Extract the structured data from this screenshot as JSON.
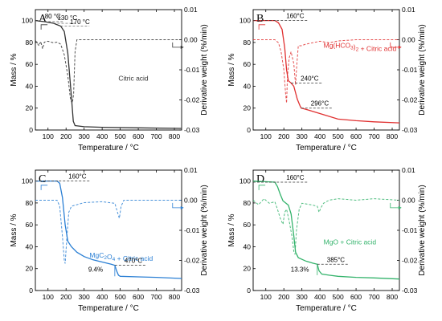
{
  "chart_data": [
    {
      "type": "line",
      "panel": "A",
      "label": "Citric acid",
      "xlabel": "Temperature / °C",
      "ylabel_left": "Mass / %",
      "ylabel_right": "Derivative weight (%/min)",
      "xlim": [
        30,
        840
      ],
      "ylim_left": [
        0,
        110
      ],
      "ylim_right": [
        -0.03,
        0.01
      ],
      "x_ticks": [
        100,
        200,
        300,
        400,
        500,
        600,
        700,
        800
      ],
      "y_ticks_left": [
        0,
        20,
        40,
        60,
        80,
        100
      ],
      "y_ticks_right": [
        -0.03,
        -0.02,
        -0.01,
        0.0,
        0.01
      ],
      "x_tick_labels": [
        "100",
        "200",
        "300",
        "400",
        "500",
        "600",
        "700",
        "800"
      ],
      "y_tick_labels_left": [
        "0",
        "20",
        "40",
        "60",
        "80",
        "100"
      ],
      "y_tick_labels_right": [
        "-0.03",
        "-0.02",
        "-0.01",
        "0.00",
        "0.01"
      ],
      "color": "#333333",
      "mass": [
        [
          30,
          100
        ],
        [
          80,
          99
        ],
        [
          130,
          97.5
        ],
        [
          170,
          95
        ],
        [
          190,
          90
        ],
        [
          210,
          70
        ],
        [
          230,
          30
        ],
        [
          240,
          8
        ],
        [
          250,
          4
        ],
        [
          300,
          3
        ],
        [
          400,
          2.5
        ],
        [
          600,
          2
        ],
        [
          840,
          1.5
        ]
      ],
      "deriv": [
        [
          30,
          -0.0002
        ],
        [
          50,
          -0.002
        ],
        [
          60,
          -0.0006
        ],
        [
          70,
          -0.003
        ],
        [
          80,
          -0.0008
        ],
        [
          100,
          -0.0005
        ],
        [
          130,
          -0.001
        ],
        [
          150,
          -0.0008
        ],
        [
          170,
          -0.0015
        ],
        [
          190,
          -0.005
        ],
        [
          210,
          -0.012
        ],
        [
          225,
          -0.02
        ],
        [
          235,
          -0.021
        ],
        [
          242,
          -0.018
        ],
        [
          250,
          -0.004
        ],
        [
          260,
          0
        ],
        [
          300,
          0
        ],
        [
          400,
          0
        ],
        [
          600,
          0
        ],
        [
          840,
          0
        ]
      ],
      "annotations": [
        {
          "text": "80 °C",
          "x": 80,
          "y": 99
        },
        {
          "text": "130 °C",
          "x": 130,
          "y": 97.5
        },
        {
          "text": "170 °C",
          "x": 170,
          "y": 95
        }
      ]
    },
    {
      "type": "line",
      "panel": "B",
      "label": "Mg(HCO3)2 + Citric acid",
      "xlabel": "Temperature / °C",
      "ylabel_left": "Mass / %",
      "ylabel_right": "Derivative weight (%/min)",
      "xlim": [
        30,
        840
      ],
      "ylim_left": [
        0,
        110
      ],
      "ylim_right": [
        -0.03,
        0.01
      ],
      "x_ticks": [
        100,
        200,
        300,
        400,
        500,
        600,
        700,
        800
      ],
      "y_ticks_left": [
        0,
        20,
        40,
        60,
        80,
        100
      ],
      "y_ticks_right": [
        -0.03,
        -0.02,
        -0.01,
        0.0,
        0.01
      ],
      "x_tick_labels": [
        "100",
        "200",
        "300",
        "400",
        "500",
        "600",
        "700",
        "800"
      ],
      "y_tick_labels_left": [
        "0",
        "20",
        "40",
        "60",
        "80",
        "100"
      ],
      "y_tick_labels_right": [
        "-0.03",
        "-0.02",
        "-0.01",
        "0.00",
        "0.01"
      ],
      "color": "#e03030",
      "mass": [
        [
          30,
          100
        ],
        [
          150,
          100
        ],
        [
          170,
          98
        ],
        [
          190,
          92
        ],
        [
          205,
          75
        ],
        [
          215,
          55
        ],
        [
          225,
          45
        ],
        [
          240,
          43
        ],
        [
          255,
          40
        ],
        [
          275,
          28
        ],
        [
          290,
          22
        ],
        [
          296,
          20
        ],
        [
          320,
          19
        ],
        [
          400,
          15
        ],
        [
          500,
          10
        ],
        [
          600,
          8.5
        ],
        [
          700,
          7.5
        ],
        [
          840,
          6.5
        ]
      ],
      "deriv": [
        [
          30,
          0
        ],
        [
          150,
          0
        ],
        [
          170,
          -0.001
        ],
        [
          185,
          -0.004
        ],
        [
          200,
          -0.01
        ],
        [
          210,
          -0.018
        ],
        [
          215,
          -0.021
        ],
        [
          220,
          -0.012
        ],
        [
          230,
          -0.006
        ],
        [
          240,
          -0.004
        ],
        [
          255,
          -0.008
        ],
        [
          265,
          -0.015
        ],
        [
          272,
          -0.008
        ],
        [
          280,
          -0.002
        ],
        [
          296,
          -0.002
        ],
        [
          320,
          -0.0015
        ],
        [
          400,
          -0.0005
        ],
        [
          450,
          -0.001
        ],
        [
          500,
          -0.0004
        ],
        [
          600,
          0
        ],
        [
          840,
          0
        ]
      ],
      "annotations": [
        {
          "text": "160°C",
          "x": 160,
          "y": 100
        },
        {
          "text": "240°C",
          "x": 240,
          "y": 43
        },
        {
          "text": "296°C",
          "x": 296,
          "y": 20
        }
      ]
    },
    {
      "type": "line",
      "panel": "C",
      "label": "MgC2O4 + Citric acid",
      "xlabel": "Temperature / °C",
      "ylabel_left": "Mass / %",
      "ylabel_right": "Derivative weight (%/min)",
      "xlim": [
        30,
        840
      ],
      "ylim_left": [
        0,
        110
      ],
      "ylim_right": [
        -0.03,
        0.01
      ],
      "x_ticks": [
        100,
        200,
        300,
        400,
        500,
        600,
        700,
        800
      ],
      "y_ticks_left": [
        0,
        20,
        40,
        60,
        80,
        100
      ],
      "y_ticks_right": [
        -0.03,
        -0.02,
        -0.01,
        0.0,
        0.01
      ],
      "x_tick_labels": [
        "100",
        "200",
        "300",
        "400",
        "500",
        "600",
        "700",
        "800"
      ],
      "y_tick_labels_left": [
        "0",
        "20",
        "40",
        "60",
        "80",
        "100"
      ],
      "y_tick_labels_right": [
        "-0.03",
        "-0.02",
        "-0.01",
        "0.00",
        "0.01"
      ],
      "color": "#2a7fd4",
      "mass": [
        [
          30,
          100
        ],
        [
          150,
          100
        ],
        [
          165,
          98
        ],
        [
          180,
          85
        ],
        [
          195,
          60
        ],
        [
          210,
          45
        ],
        [
          230,
          40
        ],
        [
          260,
          35
        ],
        [
          300,
          31
        ],
        [
          350,
          28
        ],
        [
          400,
          26
        ],
        [
          450,
          24
        ],
        [
          470,
          23
        ],
        [
          480,
          18
        ],
        [
          490,
          14
        ],
        [
          500,
          13
        ],
        [
          600,
          12.5
        ],
        [
          700,
          12
        ],
        [
          840,
          11
        ]
      ],
      "deriv": [
        [
          30,
          0
        ],
        [
          150,
          0
        ],
        [
          165,
          -0.002
        ],
        [
          180,
          -0.012
        ],
        [
          190,
          -0.02
        ],
        [
          195,
          -0.021
        ],
        [
          205,
          -0.012
        ],
        [
          215,
          -0.004
        ],
        [
          230,
          -0.002
        ],
        [
          300,
          -0.0008
        ],
        [
          400,
          -0.0005
        ],
        [
          470,
          -0.001
        ],
        [
          485,
          -0.004
        ],
        [
          495,
          -0.006
        ],
        [
          505,
          -0.002
        ],
        [
          520,
          0
        ],
        [
          840,
          0
        ]
      ],
      "annotations": [
        {
          "text": "160°C",
          "x": 160,
          "y": 100
        },
        {
          "text": "470°C",
          "x": 470,
          "y": 23
        },
        {
          "text": "9.4%",
          "x": 470,
          "y": 18
        }
      ]
    },
    {
      "type": "line",
      "panel": "D",
      "label": "MgO + Citric acid",
      "xlabel": "Temperature / °C",
      "ylabel_left": "Mass / %",
      "ylabel_right": "Derivative weight (%/min)",
      "xlim": [
        30,
        840
      ],
      "ylim_left": [
        0,
        110
      ],
      "ylim_right": [
        -0.03,
        0.01
      ],
      "x_ticks": [
        100,
        200,
        300,
        400,
        500,
        600,
        700,
        800
      ],
      "y_ticks_left": [
        0,
        20,
        40,
        60,
        80,
        100
      ],
      "y_ticks_right": [
        -0.03,
        -0.02,
        -0.01,
        0.0,
        0.01
      ],
      "x_tick_labels": [
        "100",
        "200",
        "300",
        "400",
        "500",
        "600",
        "700",
        "800"
      ],
      "y_tick_labels_left": [
        "0",
        "20",
        "40",
        "60",
        "80",
        "100"
      ],
      "y_tick_labels_right": [
        "-0.03",
        "-0.02",
        "-0.01",
        "0.00",
        "0.01"
      ],
      "color": "#33b36b",
      "mass": [
        [
          30,
          100
        ],
        [
          150,
          99
        ],
        [
          165,
          95
        ],
        [
          180,
          88
        ],
        [
          195,
          82
        ],
        [
          210,
          80
        ],
        [
          225,
          78
        ],
        [
          240,
          70
        ],
        [
          255,
          50
        ],
        [
          265,
          35
        ],
        [
          280,
          30
        ],
        [
          320,
          27
        ],
        [
          360,
          25
        ],
        [
          385,
          24
        ],
        [
          395,
          18
        ],
        [
          410,
          15
        ],
        [
          450,
          14
        ],
        [
          500,
          13
        ],
        [
          600,
          12
        ],
        [
          700,
          11.5
        ],
        [
          840,
          10.5
        ]
      ],
      "deriv": [
        [
          30,
          0
        ],
        [
          60,
          -0.0015
        ],
        [
          90,
          0.0005
        ],
        [
          120,
          -0.001
        ],
        [
          150,
          -0.0005
        ],
        [
          165,
          -0.003
        ],
        [
          180,
          -0.006
        ],
        [
          195,
          -0.008
        ],
        [
          205,
          -0.004
        ],
        [
          215,
          -0.003
        ],
        [
          230,
          -0.007
        ],
        [
          245,
          -0.012
        ],
        [
          255,
          -0.017
        ],
        [
          262,
          -0.018
        ],
        [
          270,
          -0.01
        ],
        [
          285,
          -0.003
        ],
        [
          300,
          -0.001
        ],
        [
          350,
          -0.0015
        ],
        [
          385,
          -0.002
        ],
        [
          395,
          -0.004
        ],
        [
          405,
          -0.0025
        ],
        [
          420,
          -0.001
        ],
        [
          450,
          0
        ],
        [
          500,
          0.0005
        ],
        [
          600,
          0
        ],
        [
          700,
          0.0005
        ],
        [
          840,
          0
        ]
      ],
      "annotations": [
        {
          "text": "160°C",
          "x": 160,
          "y": 99
        },
        {
          "text": "385°C",
          "x": 385,
          "y": 24
        },
        {
          "text": "13.3%",
          "x": 385,
          "y": 18
        }
      ]
    }
  ]
}
